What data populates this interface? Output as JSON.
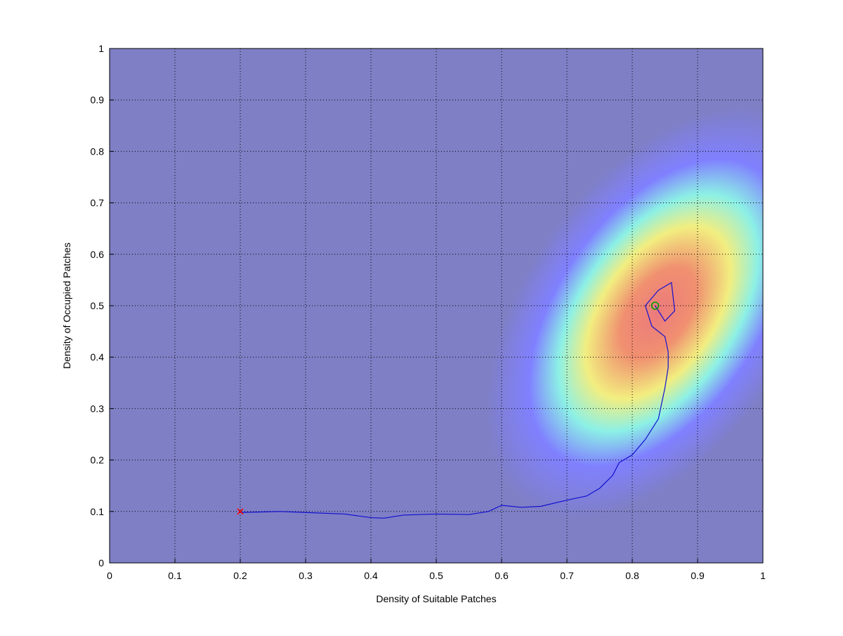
{
  "chart_data": {
    "type": "line",
    "xlabel": "Density of Suitable Patches",
    "ylabel": "Density of Occupied Patches",
    "xlim": [
      0,
      1
    ],
    "ylim": [
      0,
      1
    ],
    "xticks": [
      0,
      0.1,
      0.2,
      0.3,
      0.4,
      0.5,
      0.6,
      0.7,
      0.8,
      0.9,
      1
    ],
    "yticks": [
      0,
      0.1,
      0.2,
      0.3,
      0.4,
      0.5,
      0.6,
      0.7,
      0.8,
      0.9,
      1
    ],
    "grid": true,
    "trajectory": {
      "color": "#1010d0",
      "x": [
        0.2,
        0.26,
        0.3,
        0.36,
        0.4,
        0.42,
        0.45,
        0.5,
        0.55,
        0.58,
        0.6,
        0.63,
        0.66,
        0.7,
        0.73,
        0.75,
        0.77,
        0.78,
        0.8,
        0.82,
        0.83,
        0.84,
        0.845,
        0.85,
        0.855,
        0.855,
        0.85,
        0.83,
        0.82,
        0.84,
        0.86,
        0.865,
        0.85,
        0.835
      ],
      "y": [
        0.098,
        0.1,
        0.098,
        0.095,
        0.088,
        0.087,
        0.093,
        0.095,
        0.094,
        0.1,
        0.112,
        0.108,
        0.11,
        0.122,
        0.13,
        0.145,
        0.17,
        0.195,
        0.21,
        0.24,
        0.26,
        0.28,
        0.31,
        0.34,
        0.38,
        0.41,
        0.44,
        0.46,
        0.5,
        0.53,
        0.545,
        0.49,
        0.47,
        0.5
      ]
    },
    "start": {
      "x": 0.2,
      "y": 0.1,
      "color": "#ff0000"
    },
    "end": {
      "x": 0.835,
      "y": 0.5,
      "color": "#00a000"
    }
  }
}
